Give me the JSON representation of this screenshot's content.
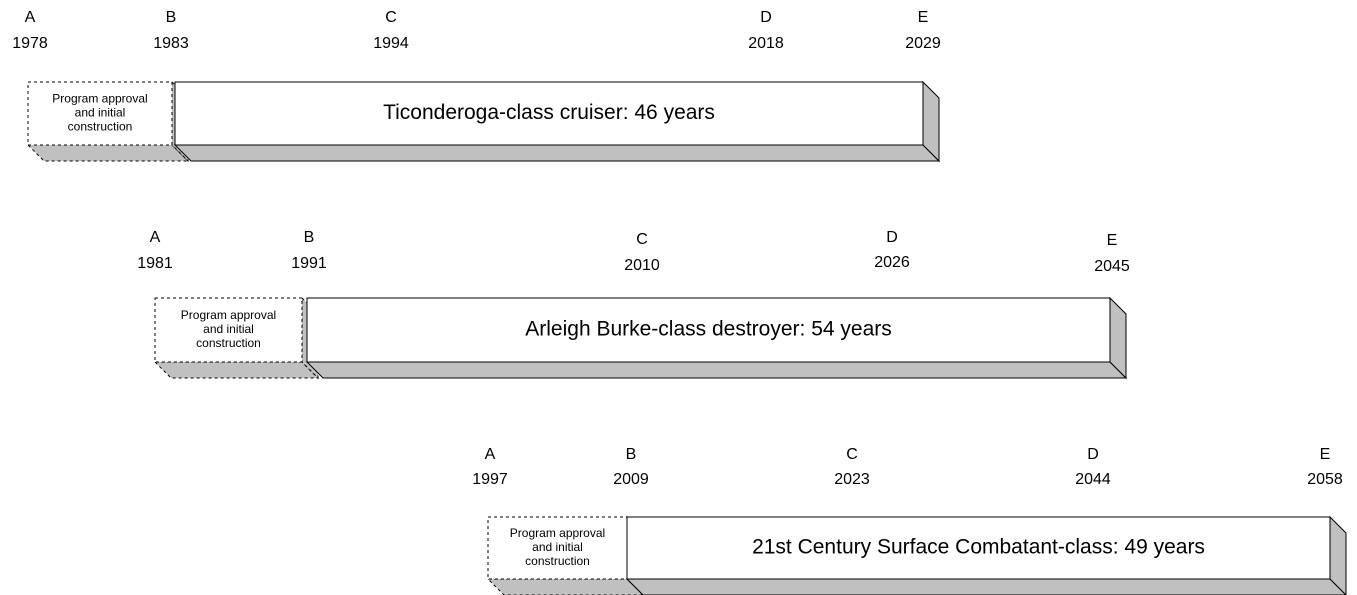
{
  "rows": [
    {
      "markers": [
        {
          "letter": "A",
          "year": 1978
        },
        {
          "letter": "B",
          "year": 1983
        },
        {
          "letter": "C",
          "year": 1994
        },
        {
          "letter": "D",
          "year": 2018
        },
        {
          "letter": "E",
          "year": 2029
        }
      ],
      "phase_lines": [
        "Program approval",
        "and initial",
        "construction"
      ],
      "bar_label": "Ticonderoga-class cruiser:  46 years"
    },
    {
      "markers": [
        {
          "letter": "A",
          "year": 1981
        },
        {
          "letter": "B",
          "year": 1991
        },
        {
          "letter": "C",
          "year": 2010
        },
        {
          "letter": "D",
          "year": 2026
        },
        {
          "letter": "E",
          "year": 2045
        }
      ],
      "phase_lines": [
        "Program approval",
        "and initial",
        "construction"
      ],
      "bar_label": "Arleigh Burke-class destroyer:  54 years"
    },
    {
      "markers": [
        {
          "letter": "A",
          "year": 1997
        },
        {
          "letter": "B",
          "year": 2009
        },
        {
          "letter": "C",
          "year": 2023
        },
        {
          "letter": "D",
          "year": 2044
        },
        {
          "letter": "E",
          "year": 2058
        }
      ],
      "phase_lines": [
        "Program approval",
        "and initial",
        "construction"
      ],
      "bar_label": "21st Century Surface Combatant-class:  49 years"
    }
  ]
}
